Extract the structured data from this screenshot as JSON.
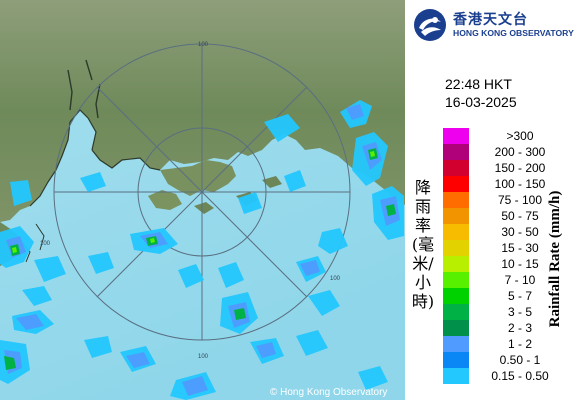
{
  "organization": {
    "name_zh": "香港天文台",
    "name_en": "HONG KONG OBSERVATORY",
    "copyright": "© Hong Kong Observatory"
  },
  "timestamp": {
    "time": "22:48 HKT",
    "date": "16-03-2025"
  },
  "radar_map": {
    "range_rings_km": [
      64,
      128
    ],
    "ring_labels": [
      "100",
      "100",
      "100",
      "100"
    ],
    "colors": {
      "sea": "#7fcde4",
      "land": "#6f8a5a",
      "rings": "#5a6f80"
    }
  },
  "legend": {
    "caption_zh": "降雨率(毫米/小時)",
    "caption_en": "Rainfall Rate (mm/h)",
    "items": [
      {
        "label": ">300",
        "color": "#ee00ee"
      },
      {
        "label": "200 - 300",
        "color": "#b0007a"
      },
      {
        "label": "150 - 200",
        "color": "#d2002e"
      },
      {
        "label": "100 - 150",
        "color": "#ff0000"
      },
      {
        "label": "75 - 100",
        "color": "#ff6d00"
      },
      {
        "label": "50 - 75",
        "color": "#f29400"
      },
      {
        "label": "30 - 50",
        "color": "#f7bb00"
      },
      {
        "label": "15 - 30",
        "color": "#e2d200"
      },
      {
        "label": "10 - 15",
        "color": "#b8ee00"
      },
      {
        "label": "7 - 10",
        "color": "#59f000"
      },
      {
        "label": "5 - 7",
        "color": "#00d200"
      },
      {
        "label": "3 - 5",
        "color": "#00b246"
      },
      {
        "label": "2 - 3",
        "color": "#00904a"
      },
      {
        "label": "1 - 2",
        "color": "#4f9bff"
      },
      {
        "label": "0.50 - 1",
        "color": "#0a86f5"
      },
      {
        "label": "0.15 - 0.50",
        "color": "#23c8ff"
      }
    ]
  }
}
